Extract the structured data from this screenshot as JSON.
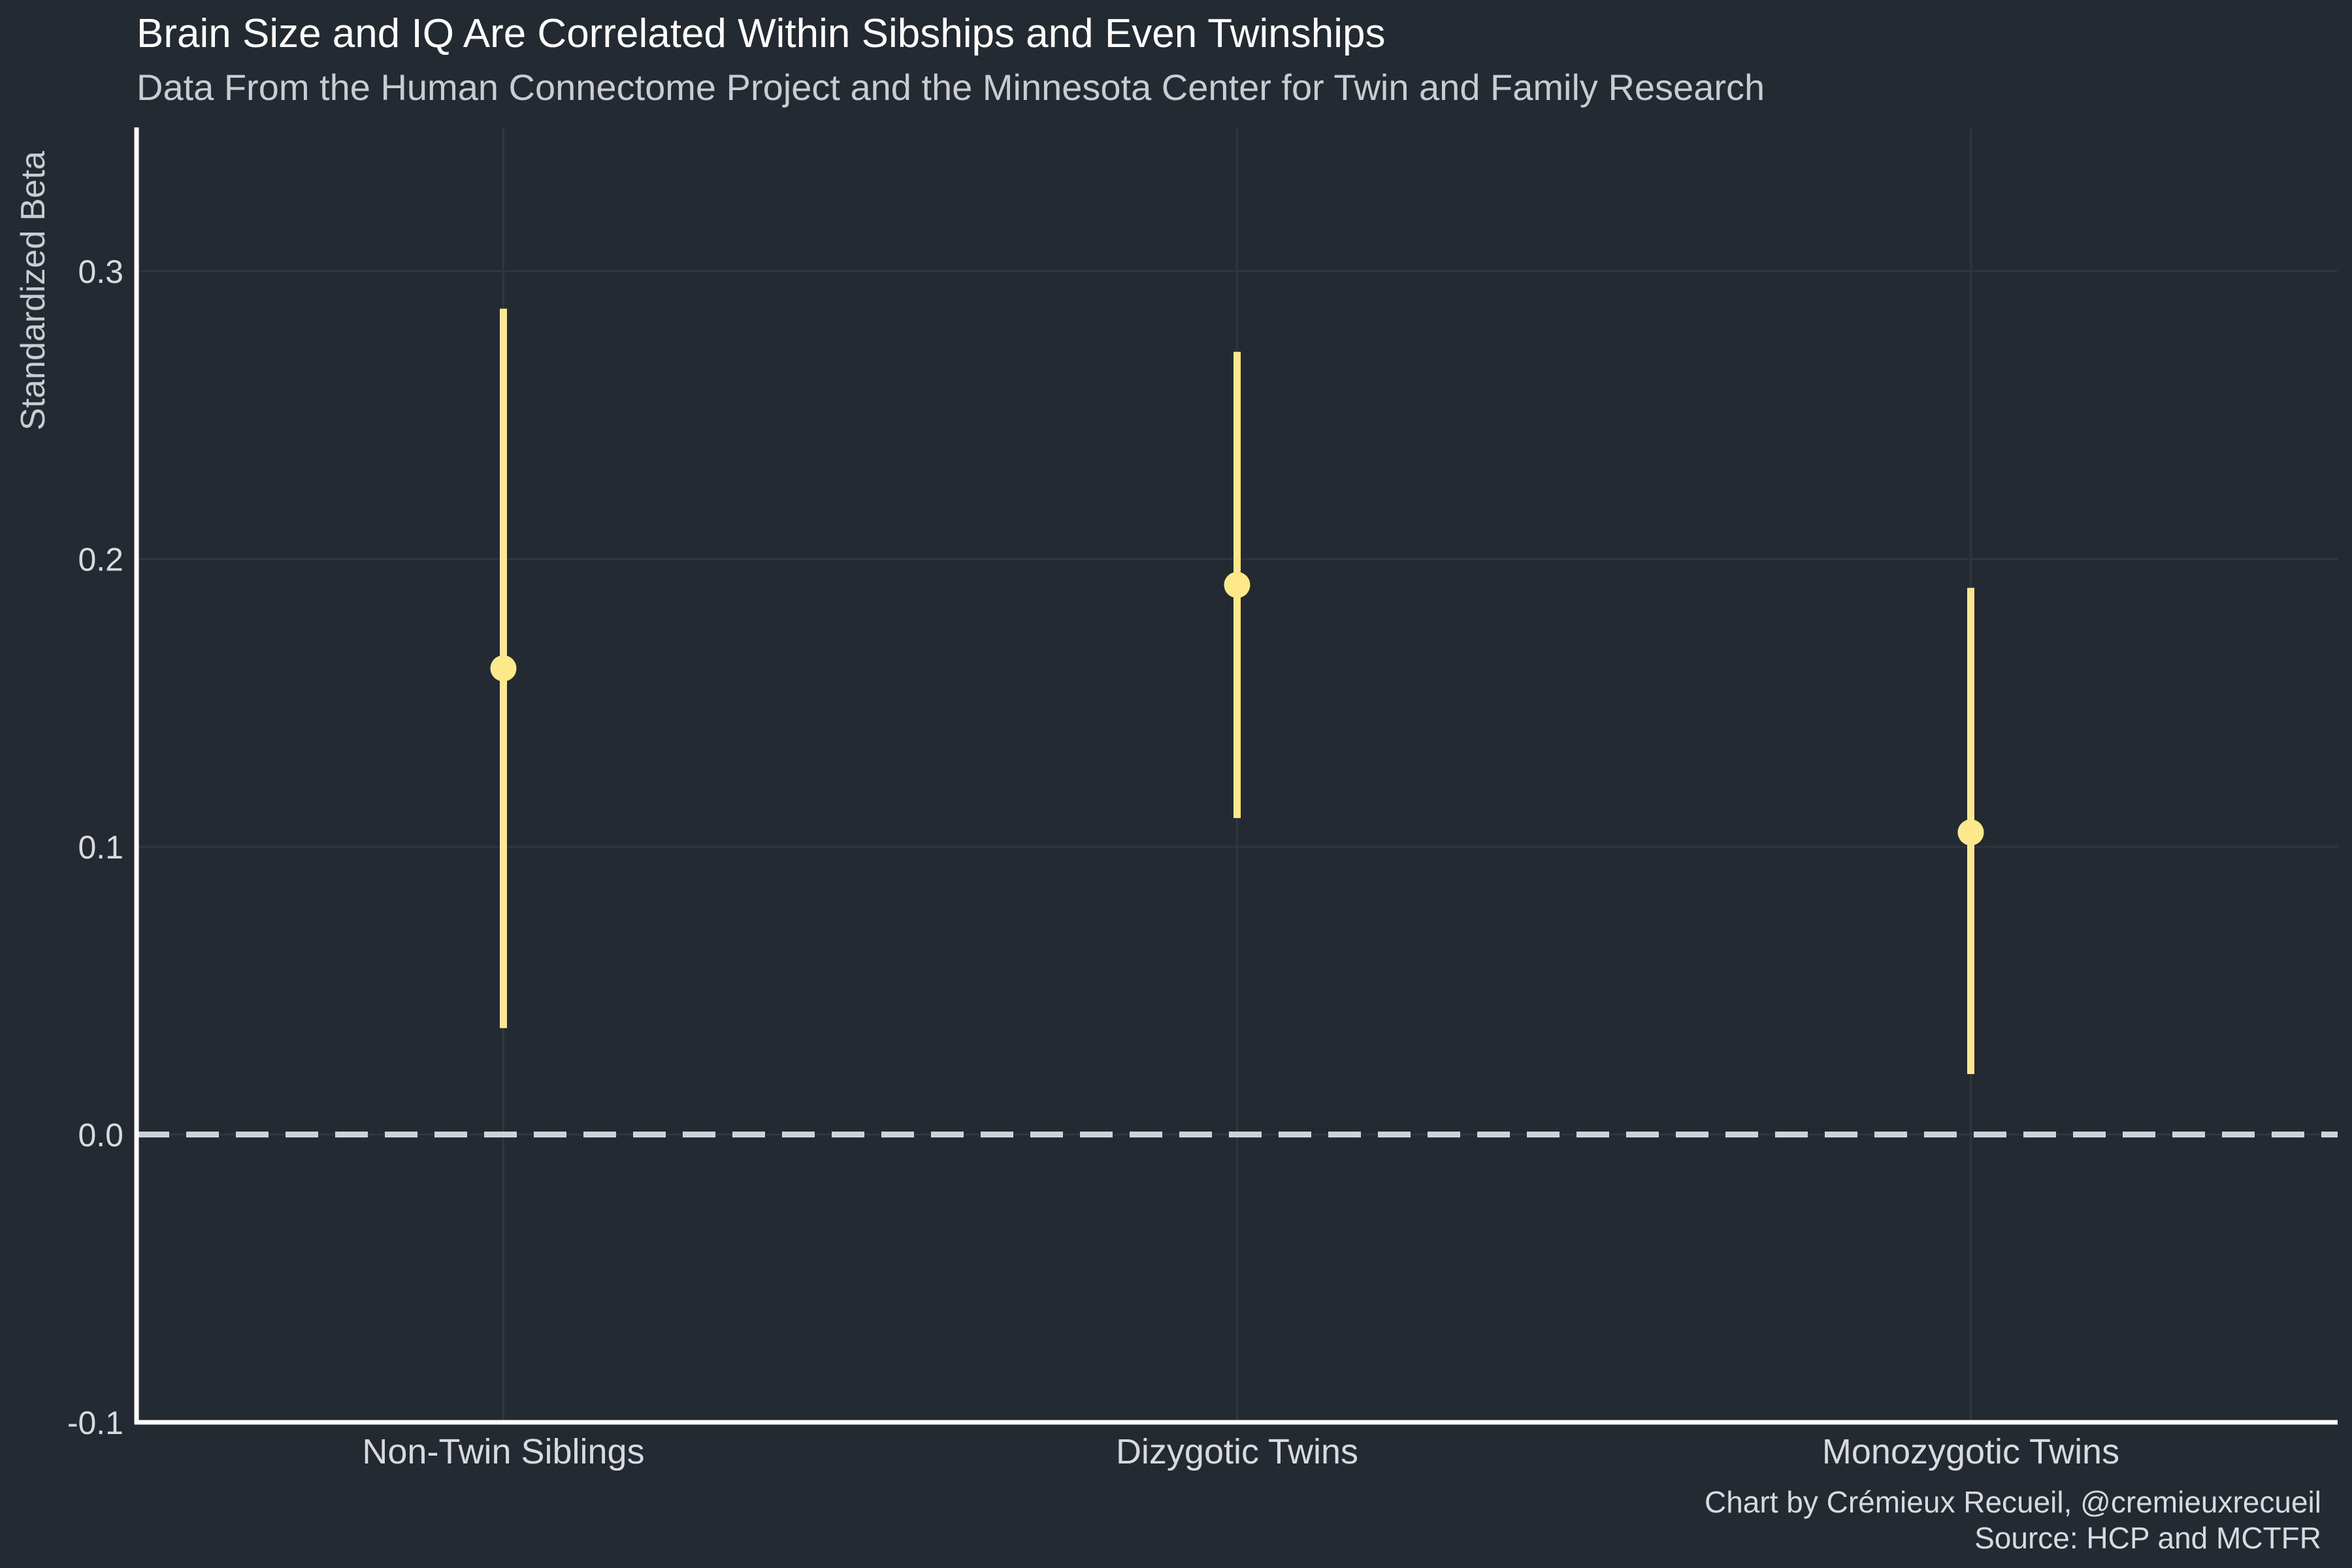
{
  "chart_data": {
    "type": "scatter",
    "title": "Brain Size and IQ Are Correlated Within Sibships and Even Twinships",
    "subtitle": "Data From the Human Connectome Project and the Minnesota Center for Twin and Family Research",
    "xlabel": "",
    "ylabel": "Standardized Beta",
    "ylim": [
      -0.1,
      0.35
    ],
    "yticks": [
      "-0.1",
      "0.0",
      "0.1",
      "0.2",
      "0.3"
    ],
    "ytick_values": [
      -0.1,
      0.0,
      0.1,
      0.2,
      0.3
    ],
    "grid": true,
    "reference_line": 0.0,
    "categories": [
      "Non-Twin Siblings",
      "Dizygotic Twins",
      "Monozygotic Twins"
    ],
    "estimates": [
      0.162,
      0.191,
      0.105
    ],
    "lower": [
      0.037,
      0.11,
      0.021
    ],
    "upper": [
      0.287,
      0.272,
      0.19
    ],
    "color": "#fde98a",
    "caption_lines": [
      "Chart by Crémieux Recueil, @cremieuxrecueil",
      "Source: HCP and MCTFR"
    ]
  }
}
